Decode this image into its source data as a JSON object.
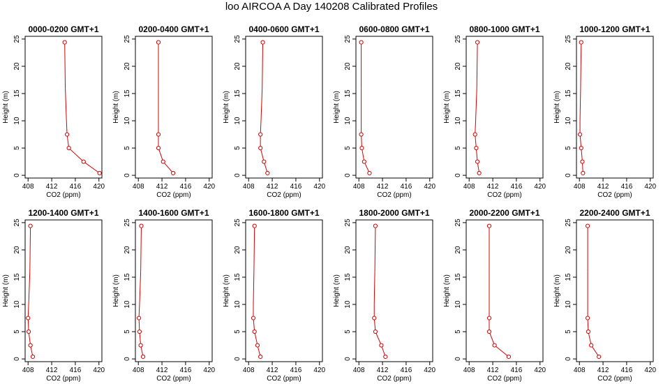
{
  "title": "loo AIRCOA A  Day 140208  Calibrated Profiles",
  "colors": {
    "series": "#d40000",
    "axes": "#000000"
  },
  "chart_data": [
    {
      "type": "line",
      "title": "0000-0200 GMT+1",
      "xlabel": "CO2 (ppm)",
      "ylabel": "Height (m)",
      "xlim": [
        407.5,
        420.5
      ],
      "ylim": [
        -0.5,
        25.5
      ],
      "xticks": [
        408,
        412,
        416,
        420
      ],
      "yticks": [
        0,
        5,
        10,
        15,
        20,
        25
      ],
      "series": [
        {
          "x": [
            414.2,
            414.3,
            414.5,
            414.6,
            414.9,
            417.4,
            420.1
          ],
          "y": [
            24.4,
            16.0,
            10.0,
            7.5,
            5.0,
            2.5,
            0.4
          ]
        }
      ]
    },
    {
      "type": "line",
      "title": "0200-0400 GMT+1",
      "xlabel": "CO2 (ppm)",
      "ylabel": "Height (m)",
      "xlim": [
        407.5,
        420.5
      ],
      "ylim": [
        -0.5,
        25.5
      ],
      "xticks": [
        408,
        412,
        416,
        420
      ],
      "yticks": [
        0,
        5,
        10,
        15,
        20,
        25
      ],
      "series": [
        {
          "x": [
            411.4,
            411.4,
            411.4,
            411.4,
            411.4,
            412.2,
            413.9
          ],
          "y": [
            24.4,
            16.0,
            10.0,
            7.5,
            5.0,
            2.5,
            0.4
          ]
        }
      ]
    },
    {
      "type": "line",
      "title": "0400-0600 GMT+1",
      "xlabel": "CO2 (ppm)",
      "ylabel": "Height (m)",
      "xlim": [
        407.5,
        420.5
      ],
      "ylim": [
        -0.5,
        25.5
      ],
      "xticks": [
        408,
        412,
        416,
        420
      ],
      "yticks": [
        0,
        5,
        10,
        15,
        20,
        25
      ],
      "series": [
        {
          "x": [
            410.4,
            410.3,
            410.1,
            410.0,
            410.0,
            410.6,
            411.2
          ],
          "y": [
            24.4,
            16.0,
            10.0,
            7.5,
            5.0,
            2.5,
            0.4
          ]
        }
      ]
    },
    {
      "type": "line",
      "title": "0600-0800 GMT+1",
      "xlabel": "CO2 (ppm)",
      "ylabel": "Height (m)",
      "xlim": [
        407.5,
        420.5
      ],
      "ylim": [
        -0.5,
        25.5
      ],
      "xticks": [
        408,
        412,
        416,
        420
      ],
      "yticks": [
        0,
        5,
        10,
        15,
        20,
        25
      ],
      "series": [
        {
          "x": [
            408.4,
            408.4,
            408.4,
            408.4,
            408.5,
            408.9,
            409.8
          ],
          "y": [
            24.4,
            16.0,
            10.0,
            7.5,
            5.0,
            2.5,
            0.4
          ]
        }
      ]
    },
    {
      "type": "line",
      "title": "0800-1000 GMT+1",
      "xlabel": "CO2 (ppm)",
      "ylabel": "Height (m)",
      "xlim": [
        407.5,
        420.5
      ],
      "ylim": [
        -0.5,
        25.5
      ],
      "xticks": [
        408,
        412,
        416,
        420
      ],
      "yticks": [
        0,
        5,
        10,
        15,
        20,
        25
      ],
      "series": [
        {
          "x": [
            409.4,
            409.3,
            409.1,
            409.0,
            409.2,
            409.4,
            409.7
          ],
          "y": [
            24.4,
            16.0,
            10.0,
            7.5,
            5.0,
            2.5,
            0.4
          ]
        }
      ]
    },
    {
      "type": "line",
      "title": "1000-1200 GMT+1",
      "xlabel": "CO2 (ppm)",
      "ylabel": "Height (m)",
      "xlim": [
        407.5,
        420.5
      ],
      "ylim": [
        -0.5,
        25.5
      ],
      "xticks": [
        408,
        412,
        416,
        420
      ],
      "yticks": [
        0,
        5,
        10,
        15,
        20,
        25
      ],
      "series": [
        {
          "x": [
            408.3,
            408.2,
            408.1,
            408.1,
            408.3,
            408.5,
            408.6
          ],
          "y": [
            24.4,
            16.0,
            10.0,
            7.5,
            5.0,
            2.5,
            0.4
          ]
        }
      ]
    },
    {
      "type": "line",
      "title": "1200-1400 GMT+1",
      "xlabel": "CO2 (ppm)",
      "ylabel": "Height (m)",
      "xlim": [
        407.5,
        420.5
      ],
      "ylim": [
        -0.5,
        25.5
      ],
      "xticks": [
        408,
        412,
        416,
        420
      ],
      "yticks": [
        0,
        5,
        10,
        15,
        20,
        25
      ],
      "series": [
        {
          "x": [
            408.4,
            408.3,
            408.1,
            408.0,
            408.1,
            408.4,
            408.8
          ],
          "y": [
            24.4,
            16.0,
            10.0,
            7.5,
            5.0,
            2.5,
            0.4
          ]
        }
      ]
    },
    {
      "type": "line",
      "title": "1400-1600 GMT+1",
      "xlabel": "CO2 (ppm)",
      "ylabel": "Height (m)",
      "xlim": [
        407.5,
        420.5
      ],
      "ylim": [
        -0.5,
        25.5
      ],
      "xticks": [
        408,
        412,
        416,
        420
      ],
      "yticks": [
        0,
        5,
        10,
        15,
        20,
        25
      ],
      "series": [
        {
          "x": [
            408.5,
            408.4,
            408.2,
            408.1,
            408.2,
            408.4,
            408.8
          ],
          "y": [
            24.4,
            16.0,
            10.0,
            7.5,
            5.0,
            2.5,
            0.4
          ]
        }
      ]
    },
    {
      "type": "line",
      "title": "1600-1800 GMT+1",
      "xlabel": "CO2 (ppm)",
      "ylabel": "Height (m)",
      "xlim": [
        407.5,
        420.5
      ],
      "ylim": [
        -0.5,
        25.5
      ],
      "xticks": [
        408,
        412,
        416,
        420
      ],
      "yticks": [
        0,
        5,
        10,
        15,
        20,
        25
      ],
      "series": [
        {
          "x": [
            409.0,
            408.9,
            408.8,
            408.8,
            409.0,
            409.5,
            410.0
          ],
          "y": [
            24.4,
            16.0,
            10.0,
            7.5,
            5.0,
            2.5,
            0.4
          ]
        }
      ]
    },
    {
      "type": "line",
      "title": "1800-2000 GMT+1",
      "xlabel": "CO2 (ppm)",
      "ylabel": "Height (m)",
      "xlim": [
        407.5,
        420.5
      ],
      "ylim": [
        -0.5,
        25.5
      ],
      "xticks": [
        408,
        412,
        416,
        420
      ],
      "yticks": [
        0,
        5,
        10,
        15,
        20,
        25
      ],
      "series": [
        {
          "x": [
            410.8,
            410.7,
            410.6,
            410.6,
            410.8,
            411.8,
            412.5
          ],
          "y": [
            24.4,
            16.0,
            10.0,
            7.5,
            5.0,
            2.5,
            0.4
          ]
        }
      ]
    },
    {
      "type": "line",
      "title": "2000-2200 GMT+1",
      "xlabel": "CO2 (ppm)",
      "ylabel": "Height (m)",
      "xlim": [
        407.5,
        420.5
      ],
      "ylim": [
        -0.5,
        25.5
      ],
      "xticks": [
        408,
        412,
        416,
        420
      ],
      "yticks": [
        0,
        5,
        10,
        15,
        20,
        25
      ],
      "series": [
        {
          "x": [
            411.4,
            411.4,
            411.4,
            411.4,
            411.4,
            412.3,
            414.7
          ],
          "y": [
            24.4,
            16.0,
            10.0,
            7.5,
            5.0,
            2.5,
            0.4
          ]
        }
      ]
    },
    {
      "type": "line",
      "title": "2200-2400 GMT+1",
      "xlabel": "CO2 (ppm)",
      "ylabel": "Height (m)",
      "xlim": [
        407.5,
        420.5
      ],
      "ylim": [
        -0.5,
        25.5
      ],
      "xticks": [
        408,
        412,
        416,
        420
      ],
      "yticks": [
        0,
        5,
        10,
        15,
        20,
        25
      ],
      "series": [
        {
          "x": [
            409.4,
            409.4,
            409.4,
            409.4,
            409.5,
            410.0,
            411.3
          ],
          "y": [
            24.4,
            16.0,
            10.0,
            7.5,
            5.0,
            2.5,
            0.4
          ]
        }
      ]
    }
  ]
}
